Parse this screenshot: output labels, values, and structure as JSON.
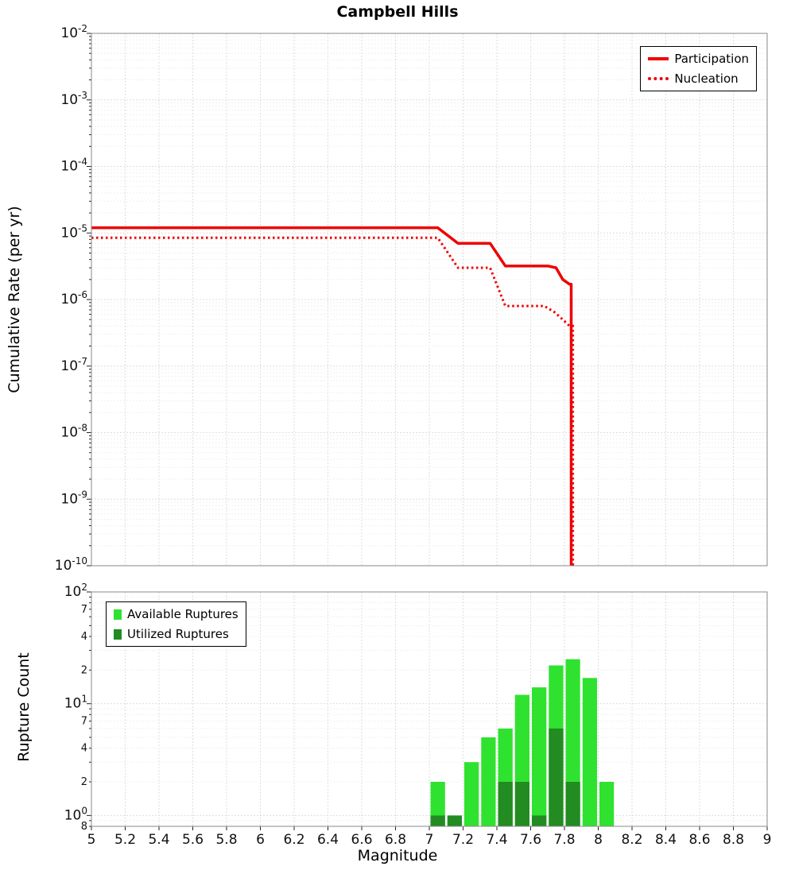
{
  "title": "Campbell Hills",
  "chart_data": [
    {
      "type": "line",
      "title": "Campbell Hills",
      "xlabel": "Magnitude",
      "ylabel": "Cumulative Rate (per yr)",
      "xlim": [
        5,
        9
      ],
      "x_tick_step": 0.2,
      "ylim": [
        1e-10,
        0.01
      ],
      "y_scale": "log",
      "grid": true,
      "legend_position": "top-right",
      "series": [
        {
          "name": "Participation",
          "style": "solid",
          "color": "#ee0000",
          "points": [
            [
              5.0,
              1.2e-05
            ],
            [
              7.05,
              1.2e-05
            ],
            [
              7.17,
              7e-06
            ],
            [
              7.36,
              7e-06
            ],
            [
              7.45,
              3.2e-06
            ],
            [
              7.7,
              3.2e-06
            ],
            [
              7.75,
              3e-06
            ],
            [
              7.79,
              2e-06
            ],
            [
              7.83,
              1.7e-06
            ],
            [
              7.84,
              1.7e-06
            ],
            [
              7.84,
              1e-10
            ]
          ]
        },
        {
          "name": "Nucleation",
          "style": "dotted",
          "color": "#ee0000",
          "points": [
            [
              5.0,
              8.5e-06
            ],
            [
              7.05,
              8.5e-06
            ],
            [
              7.17,
              3e-06
            ],
            [
              7.36,
              3e-06
            ],
            [
              7.45,
              8e-07
            ],
            [
              7.68,
              8e-07
            ],
            [
              7.74,
              6.5e-07
            ],
            [
              7.79,
              5e-07
            ],
            [
              7.83,
              4e-07
            ],
            [
              7.85,
              4e-07
            ],
            [
              7.85,
              1e-10
            ]
          ]
        }
      ]
    },
    {
      "type": "bar",
      "xlabel": "Magnitude",
      "ylabel": "Rupture Count",
      "xlim": [
        5,
        9
      ],
      "x_tick_step": 0.2,
      "ylim": [
        0.8,
        100
      ],
      "y_scale": "log",
      "grid": true,
      "legend_position": "top-left",
      "bin_width": 0.1,
      "categories": [
        7.0,
        7.1,
        7.2,
        7.3,
        7.4,
        7.5,
        7.6,
        7.7,
        7.8,
        7.9,
        8.0
      ],
      "series": [
        {
          "name": "Available Ruptures",
          "color": "#2fe22f",
          "values": [
            2,
            1,
            3,
            5,
            6,
            12,
            14,
            22,
            25,
            17,
            2
          ]
        },
        {
          "name": "Utilized Ruptures",
          "color": "#228b22",
          "values": [
            1,
            1,
            0,
            0,
            2,
            2,
            1,
            6,
            2,
            0,
            0
          ]
        }
      ]
    }
  ]
}
